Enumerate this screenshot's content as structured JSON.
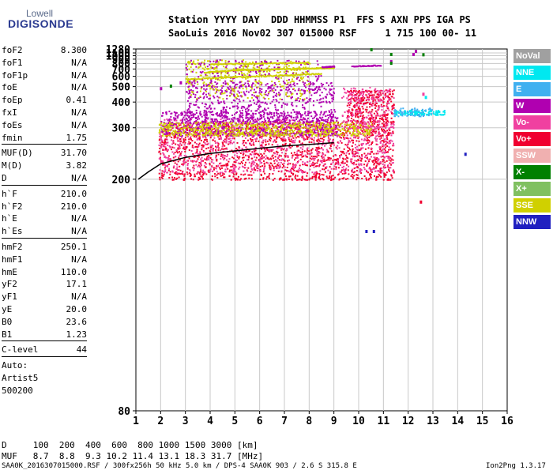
{
  "logo": {
    "top": "Lowell",
    "bottom": "DIGISONDE"
  },
  "header": {
    "line1": "Station YYYY DAY  DDD HHMMSS P1  FFS S AXN PPS IGA PS",
    "line2": "SaoLuis 2016 Nov02 307 015000 RSF     1 715 100 00- 11"
  },
  "params": {
    "group1": [
      {
        "label": "foF2",
        "value": "8.300"
      },
      {
        "label": "foF1",
        "value": "N/A"
      },
      {
        "label": "foF1p",
        "value": "N/A"
      },
      {
        "label": "foE",
        "value": "N/A"
      },
      {
        "label": "foEp",
        "value": "0.41"
      },
      {
        "label": "fxI",
        "value": "N/A"
      },
      {
        "label": "foEs",
        "value": "N/A"
      },
      {
        "label": "fmin",
        "value": "1.75"
      }
    ],
    "group2": [
      {
        "label": "MUF(D)",
        "value": "31.70"
      },
      {
        "label": "M(D)",
        "value": "3.82"
      },
      {
        "label": "D",
        "value": "N/A"
      }
    ],
    "group3": [
      {
        "label": "h`F",
        "value": "210.0"
      },
      {
        "label": "h`F2",
        "value": "210.0"
      },
      {
        "label": "h`E",
        "value": "N/A"
      },
      {
        "label": "h`Es",
        "value": "N/A"
      }
    ],
    "group4": [
      {
        "label": "hmF2",
        "value": "250.1"
      },
      {
        "label": "hmF1",
        "value": "N/A"
      },
      {
        "label": "hmE",
        "value": "110.0"
      },
      {
        "label": "yF2",
        "value": "17.1"
      },
      {
        "label": "yF1",
        "value": "N/A"
      },
      {
        "label": "yE",
        "value": "20.0"
      },
      {
        "label": "B0",
        "value": "23.6"
      },
      {
        "label": "B1",
        "value": "1.23"
      }
    ],
    "group5": [
      {
        "label": "C-level",
        "value": "44"
      }
    ],
    "extra": [
      "Auto:",
      "Artist5",
      "500200"
    ]
  },
  "legend": [
    {
      "label": "NoVal",
      "color": "#a0a0a0"
    },
    {
      "label": "NNE",
      "color": "#00e8f0"
    },
    {
      "label": "E",
      "color": "#40b0f0"
    },
    {
      "label": "W",
      "color": "#b000b0"
    },
    {
      "label": "Vo-",
      "color": "#f040a0"
    },
    {
      "label": "Vo+",
      "color": "#f00030"
    },
    {
      "label": "SSW",
      "color": "#f0b0b0"
    },
    {
      "label": "X-",
      "color": "#008000"
    },
    {
      "label": "X+",
      "color": "#80c060"
    },
    {
      "label": "SSE",
      "color": "#d0d000"
    },
    {
      "label": "NNW",
      "color": "#2020c0"
    }
  ],
  "bottom": {
    "d_line": "D     100  200  400  600  800 1000 1500 3000 [km]",
    "muf_line": "MUF   8.7  8.8  9.3 10.2 11.4 13.1 18.3 31.7 [MHz]"
  },
  "footer": {
    "file": "SAA0K_2016307015000.RSF / 300fx256h 50 kHz 5.0 km / DPS-4 SAA0K 903 / 2.6 S 315.8 E",
    "version": "Ion2Png 1.3.17"
  },
  "chart_data": {
    "type": "scatter",
    "title": "",
    "xlabel": "",
    "ylabel": "",
    "xlim": [
      1,
      16
    ],
    "ylim": [
      80,
      1280
    ],
    "yscale": "reciprocal",
    "x_ticks": [
      1,
      2,
      3,
      4,
      5,
      6,
      7,
      8,
      9,
      10,
      11,
      12,
      13,
      14,
      15,
      16
    ],
    "y_ticks": [
      80,
      200,
      300,
      400,
      500,
      600,
      700,
      800,
      900,
      1000,
      1100,
      1280
    ],
    "grid": true,
    "legend_position": "right",
    "clusters": [
      {
        "color": "#f00030",
        "x": [
          1.9,
          11.4
        ],
        "y": [
          200,
          320
        ],
        "n": 1700
      },
      {
        "color": "#f040a0",
        "x": [
          1.9,
          11.4
        ],
        "y": [
          210,
          330
        ],
        "n": 1000
      },
      {
        "color": "#b000b0",
        "x": [
          2.0,
          9.2
        ],
        "y": [
          280,
          360
        ],
        "n": 700
      },
      {
        "color": "#d0d000",
        "x": [
          1.9,
          10.5
        ],
        "y": [
          280,
          320
        ],
        "n": 600
      },
      {
        "color": "#b000b0",
        "x": [
          3.0,
          9.0
        ],
        "y": [
          320,
          540
        ],
        "n": 650
      },
      {
        "color": "#d0d000",
        "x": [
          3.0,
          8.0
        ],
        "y": [
          420,
          900
        ],
        "n": 350
      },
      {
        "color": "#b000b0",
        "x": [
          3.0,
          8.5
        ],
        "y": [
          540,
          900
        ],
        "n": 170
      },
      {
        "color": "#f00030",
        "x": [
          9.5,
          11.4
        ],
        "y": [
          320,
          480
        ],
        "n": 300
      },
      {
        "color": "#00e8f0",
        "x": [
          11.4,
          13.5
        ],
        "y": [
          345,
          365
        ],
        "n": 120
      },
      {
        "color": "#40b0f0",
        "x": [
          11.4,
          13.0
        ],
        "y": [
          340,
          375
        ],
        "n": 60
      },
      {
        "color": "#f040a0",
        "x": [
          9.3,
          11.4
        ],
        "y": [
          300,
          500
        ],
        "n": 200
      }
    ],
    "traces": [
      {
        "color": "#d0d000",
        "x": [
          3.8,
          5.0,
          6.0,
          7.0,
          8.0,
          9.0
        ],
        "y": [
          660,
          690,
          700,
          710,
          720,
          730
        ]
      },
      {
        "color": "#d0d000",
        "x": [
          3.0,
          5.0,
          7.0,
          8.5
        ],
        "y": [
          575,
          600,
          620,
          640
        ]
      },
      {
        "color": "#b000b0",
        "x": [
          8.5,
          9.0
        ],
        "y": [
          740,
          755
        ]
      },
      {
        "color": "#b000b0",
        "x": [
          9.7,
          10.9
        ],
        "y": [
          755,
          775
        ]
      },
      {
        "color": "#d0d000",
        "x": [
          4.0,
          6.0,
          8.0
        ],
        "y": [
          800,
          815,
          830
        ]
      }
    ],
    "profile_curve": {
      "color": "#000000",
      "x": [
        1.1,
        1.5,
        2.0,
        3.0,
        4.0,
        5.0,
        6.0,
        7.0,
        8.0,
        9.0
      ],
      "y": [
        200,
        210,
        222,
        233,
        240,
        245,
        250,
        255,
        258,
        262
      ]
    },
    "isolated_points": [
      {
        "color": "#008000",
        "x": 10.5,
        "y": 1280
      },
      {
        "color": "#008000",
        "x": 11.3,
        "y": 1070
      },
      {
        "color": "#b000b0",
        "x": 12.2,
        "y": 1070
      },
      {
        "color": "#008000",
        "x": 12.6,
        "y": 1060
      },
      {
        "color": "#b000b0",
        "x": 11.3,
        "y": 860
      },
      {
        "color": "#008000",
        "x": 11.3,
        "y": 820
      },
      {
        "color": "#b000b0",
        "x": 12.3,
        "y": 1200
      },
      {
        "color": "#2020c0",
        "x": 14.3,
        "y": 240
      },
      {
        "color": "#2020c0",
        "x": 10.3,
        "y": 150
      },
      {
        "color": "#2020c0",
        "x": 10.6,
        "y": 150
      },
      {
        "color": "#f00030",
        "x": 12.5,
        "y": 175
      },
      {
        "color": "#00e8f0",
        "x": 12.7,
        "y": 430
      },
      {
        "color": "#f040a0",
        "x": 12.6,
        "y": 450
      },
      {
        "color": "#b000b0",
        "x": 2.0,
        "y": 490
      },
      {
        "color": "#008000",
        "x": 2.4,
        "y": 510
      },
      {
        "color": "#b000b0",
        "x": 2.8,
        "y": 540
      }
    ]
  }
}
